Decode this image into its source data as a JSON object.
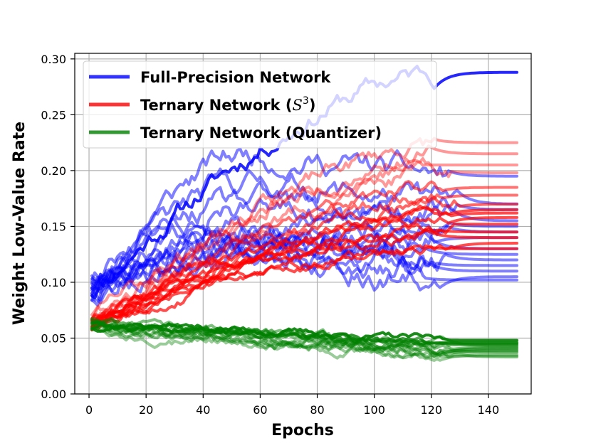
{
  "chart_data": {
    "type": "line",
    "xlabel": "Epochs",
    "ylabel": "Weight Low-Value Rate",
    "xlim": [
      -5,
      155
    ],
    "ylim": [
      0,
      0.305
    ],
    "xticks": [
      0,
      20,
      40,
      60,
      80,
      100,
      120,
      140
    ],
    "yticks": [
      0.0,
      0.05,
      0.1,
      0.15,
      0.2,
      0.25,
      0.3
    ],
    "ytick_labels": [
      "0.00",
      "0.05",
      "0.10",
      "0.15",
      "0.20",
      "0.25",
      "0.30"
    ],
    "grid": true,
    "legend": {
      "placement": "top-left",
      "entries": [
        {
          "label": "Full-Precision Network",
          "color": "#0000ff"
        },
        {
          "label": "Ternary Network (",
          "label_math": "S",
          "label_sup": "3",
          "label_end": ")",
          "color": "#ff0000"
        },
        {
          "label": "Ternary Network (Quantizer)",
          "color": "#008000"
        }
      ]
    },
    "x_range": [
      1,
      150
    ],
    "groups": [
      {
        "name": "Full-Precision Network",
        "color": "#0000ff",
        "seed": 11,
        "start_range": [
          0.085,
          0.105
        ],
        "series": [
          {
            "final": 0.288,
            "peak": 0.288,
            "shape": "rise",
            "noise": 0.006,
            "alpha": 0.85,
            "width": 4
          },
          {
            "final": 0.195,
            "peak": 0.215,
            "shape": "peak",
            "noise": 0.007,
            "alpha": 0.5,
            "width": 4
          },
          {
            "final": 0.17,
            "peak": 0.19,
            "shape": "peak",
            "noise": 0.007,
            "alpha": 0.5,
            "width": 4
          },
          {
            "final": 0.165,
            "peak": 0.175,
            "shape": "rise",
            "noise": 0.006,
            "alpha": 0.5,
            "width": 4
          },
          {
            "final": 0.155,
            "peak": 0.17,
            "shape": "peak",
            "noise": 0.007,
            "alpha": 0.5,
            "width": 4
          },
          {
            "final": 0.15,
            "peak": 0.16,
            "shape": "rise",
            "noise": 0.006,
            "alpha": 0.5,
            "width": 4
          },
          {
            "final": 0.145,
            "peak": 0.165,
            "shape": "peak",
            "noise": 0.007,
            "alpha": 0.5,
            "width": 4
          },
          {
            "final": 0.14,
            "peak": 0.15,
            "shape": "rise",
            "noise": 0.006,
            "alpha": 0.5,
            "width": 4
          },
          {
            "final": 0.13,
            "peak": 0.15,
            "shape": "peak",
            "noise": 0.007,
            "alpha": 0.5,
            "width": 4
          },
          {
            "final": 0.125,
            "peak": 0.145,
            "shape": "peak",
            "noise": 0.007,
            "alpha": 0.5,
            "width": 4
          },
          {
            "final": 0.12,
            "peak": 0.14,
            "shape": "peak",
            "noise": 0.007,
            "alpha": 0.5,
            "width": 4
          },
          {
            "final": 0.115,
            "peak": 0.14,
            "shape": "peak",
            "noise": 0.007,
            "alpha": 0.5,
            "width": 4
          },
          {
            "final": 0.11,
            "peak": 0.13,
            "shape": "peak",
            "noise": 0.007,
            "alpha": 0.5,
            "width": 4
          },
          {
            "final": 0.105,
            "peak": 0.125,
            "shape": "peak",
            "noise": 0.007,
            "alpha": 0.5,
            "width": 4
          },
          {
            "final": 0.102,
            "peak": 0.12,
            "shape": "peak",
            "noise": 0.007,
            "alpha": 0.5,
            "width": 4
          }
        ]
      },
      {
        "name": "Ternary Network (S3)",
        "color": "#ff0000",
        "seed": 23,
        "start_range": [
          0.058,
          0.068
        ],
        "series": [
          {
            "final": 0.225,
            "peak": 0.225,
            "shape": "rise",
            "noise": 0.005,
            "alpha": 0.4,
            "width": 4
          },
          {
            "final": 0.215,
            "peak": 0.215,
            "shape": "rise",
            "noise": 0.005,
            "alpha": 0.4,
            "width": 4
          },
          {
            "final": 0.205,
            "peak": 0.205,
            "shape": "rise",
            "noise": 0.005,
            "alpha": 0.4,
            "width": 4
          },
          {
            "final": 0.198,
            "peak": 0.198,
            "shape": "rise",
            "noise": 0.005,
            "alpha": 0.4,
            "width": 4
          },
          {
            "final": 0.185,
            "peak": 0.185,
            "shape": "rise",
            "noise": 0.004,
            "alpha": 0.55,
            "width": 4
          },
          {
            "final": 0.178,
            "peak": 0.178,
            "shape": "rise",
            "noise": 0.004,
            "alpha": 0.55,
            "width": 4
          },
          {
            "final": 0.17,
            "peak": 0.17,
            "shape": "rise",
            "noise": 0.004,
            "alpha": 0.6,
            "width": 4
          },
          {
            "final": 0.165,
            "peak": 0.165,
            "shape": "rise",
            "noise": 0.003,
            "alpha": 0.7,
            "width": 4
          },
          {
            "final": 0.162,
            "peak": 0.162,
            "shape": "rise",
            "noise": 0.003,
            "alpha": 0.7,
            "width": 4
          },
          {
            "final": 0.158,
            "peak": 0.158,
            "shape": "rise",
            "noise": 0.003,
            "alpha": 0.7,
            "width": 4
          },
          {
            "final": 0.152,
            "peak": 0.152,
            "shape": "rise",
            "noise": 0.003,
            "alpha": 0.7,
            "width": 4
          },
          {
            "final": 0.145,
            "peak": 0.145,
            "shape": "rise",
            "noise": 0.003,
            "alpha": 0.7,
            "width": 4
          },
          {
            "final": 0.14,
            "peak": 0.14,
            "shape": "rise",
            "noise": 0.003,
            "alpha": 0.7,
            "width": 4
          },
          {
            "final": 0.135,
            "peak": 0.135,
            "shape": "rise",
            "noise": 0.003,
            "alpha": 0.7,
            "width": 4
          },
          {
            "final": 0.13,
            "peak": 0.13,
            "shape": "rise",
            "noise": 0.003,
            "alpha": 0.7,
            "width": 4
          }
        ]
      },
      {
        "name": "Ternary Network (Quantizer)",
        "color": "#008000",
        "seed": 37,
        "start_range": [
          0.058,
          0.066
        ],
        "series": [
          {
            "final": 0.048,
            "peak": 0.066,
            "shape": "green",
            "noise": 0.002,
            "alpha": 0.9,
            "width": 4
          },
          {
            "final": 0.046,
            "peak": 0.062,
            "shape": "green",
            "noise": 0.002,
            "alpha": 0.8,
            "width": 4
          },
          {
            "final": 0.045,
            "peak": 0.06,
            "shape": "green",
            "noise": 0.002,
            "alpha": 0.7,
            "width": 4
          },
          {
            "final": 0.044,
            "peak": 0.058,
            "shape": "green",
            "noise": 0.0025,
            "alpha": 0.6,
            "width": 4
          },
          {
            "final": 0.043,
            "peak": 0.057,
            "shape": "green",
            "noise": 0.0025,
            "alpha": 0.5,
            "width": 4
          },
          {
            "final": 0.042,
            "peak": 0.056,
            "shape": "green",
            "noise": 0.0025,
            "alpha": 0.5,
            "width": 4
          },
          {
            "final": 0.041,
            "peak": 0.055,
            "shape": "green",
            "noise": 0.0025,
            "alpha": 0.5,
            "width": 4
          },
          {
            "final": 0.04,
            "peak": 0.054,
            "shape": "green",
            "noise": 0.003,
            "alpha": 0.45,
            "width": 4
          },
          {
            "final": 0.039,
            "peak": 0.053,
            "shape": "green",
            "noise": 0.003,
            "alpha": 0.45,
            "width": 4
          },
          {
            "final": 0.038,
            "peak": 0.052,
            "shape": "green",
            "noise": 0.003,
            "alpha": 0.45,
            "width": 4
          },
          {
            "final": 0.037,
            "peak": 0.051,
            "shape": "green",
            "noise": 0.003,
            "alpha": 0.4,
            "width": 4
          },
          {
            "final": 0.035,
            "peak": 0.05,
            "shape": "green",
            "noise": 0.003,
            "alpha": 0.4,
            "width": 4
          },
          {
            "final": 0.034,
            "peak": 0.05,
            "shape": "green",
            "noise": 0.003,
            "alpha": 0.4,
            "width": 4
          },
          {
            "final": 0.033,
            "peak": 0.048,
            "shape": "green",
            "noise": 0.003,
            "alpha": 0.4,
            "width": 4
          }
        ]
      }
    ]
  }
}
